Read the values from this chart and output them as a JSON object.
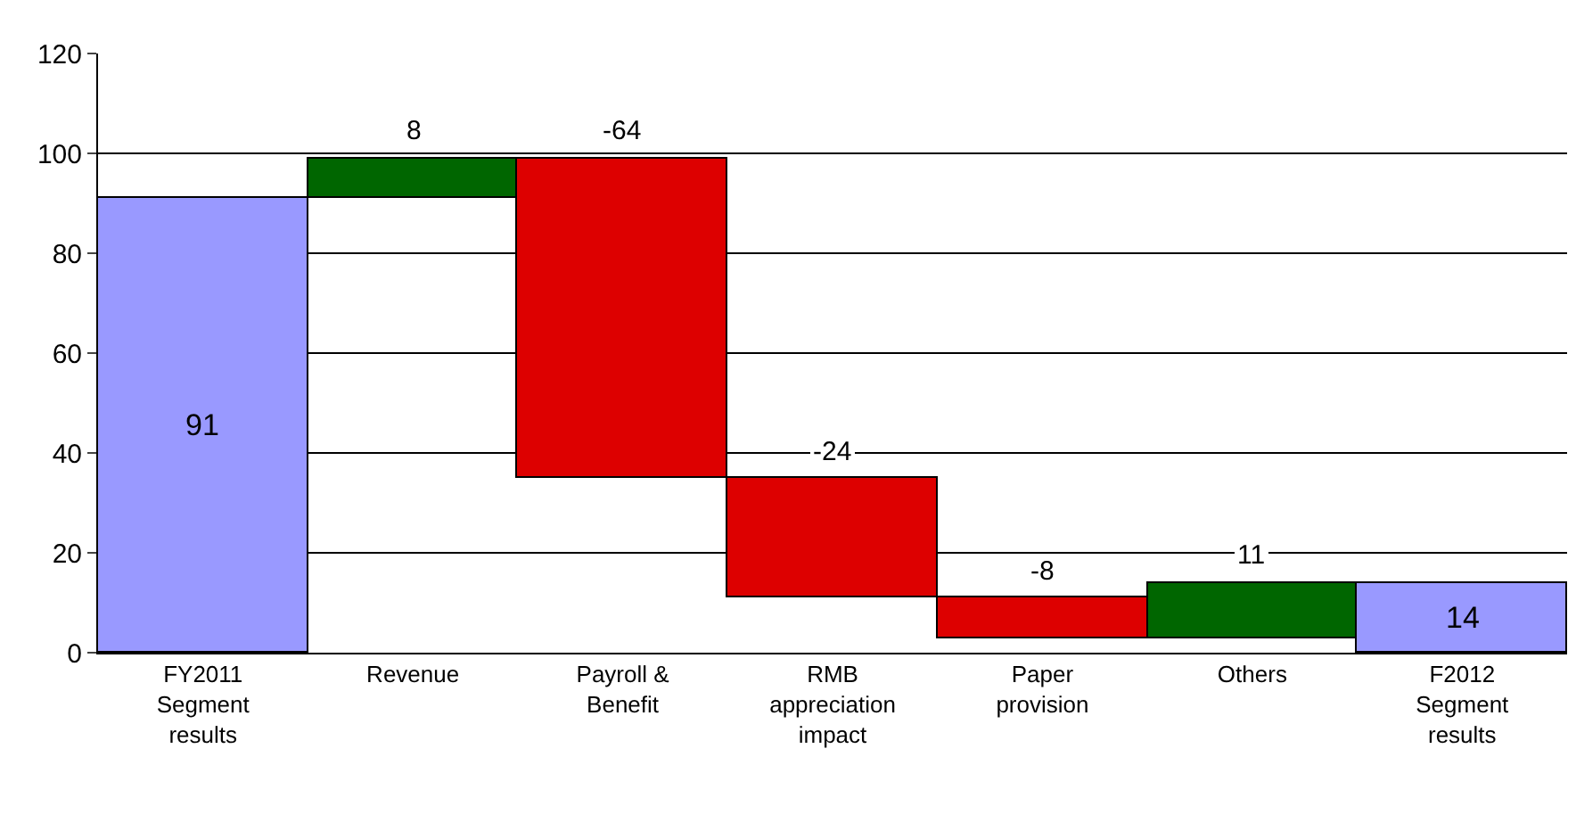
{
  "chart_data": {
    "type": "bar",
    "categories": [
      "FY2011\nSegment\nresults",
      "Revenue",
      "Payroll &\nBenefit",
      "RMB\nappreciation\nimpact",
      "Paper\nprovision",
      "Others",
      "F2012\nSegment\nresults"
    ],
    "values": [
      91,
      8,
      -64,
      -24,
      -8,
      11,
      14
    ],
    "base": [
      0,
      91,
      99,
      35,
      11,
      3,
      0
    ],
    "colors": [
      "#9999ff",
      "#006600",
      "#dd0000",
      "#dd0000",
      "#dd0000",
      "#006600",
      "#9999ff"
    ],
    "ylim": [
      0,
      120
    ],
    "yticks": [
      0,
      20,
      40,
      60,
      80,
      100,
      120
    ],
    "grid": "y",
    "data_labels": true
  }
}
